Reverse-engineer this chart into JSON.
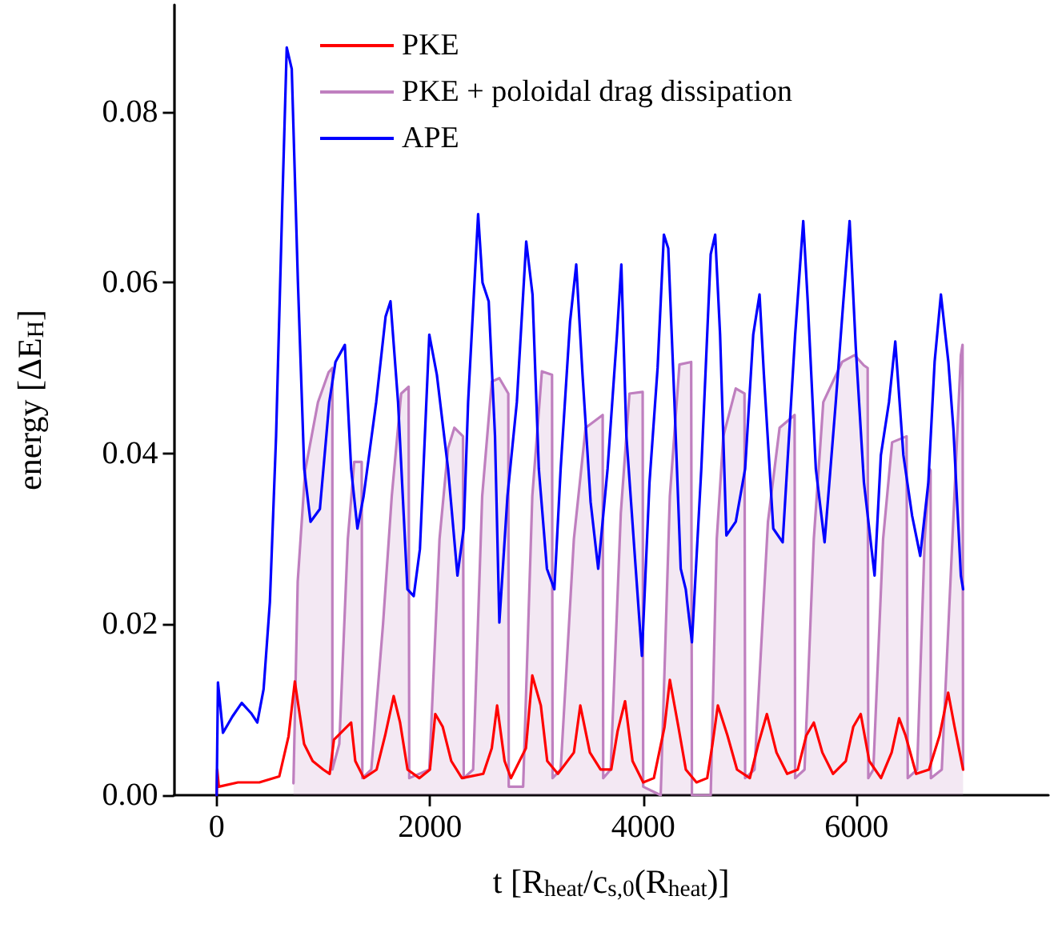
{
  "chart_data": {
    "type": "line",
    "xlabel": "t [R$_{heat}$/c$_{s,0}$(R$_{heat}$)]",
    "ylabel": "energy [ΔE$_{H}$]",
    "xlim": [
      -400,
      7800
    ],
    "xticks": [
      0,
      2000,
      4000,
      6000
    ],
    "ylim": [
      0,
      0.0925
    ],
    "yticks": [
      {
        "value": 0,
        "label": "0.00"
      },
      {
        "value": 0.02,
        "label": "0.02"
      },
      {
        "value": 0.04,
        "label": "0.04"
      },
      {
        "value": 0.06,
        "label": "0.06"
      },
      {
        "value": 0.08,
        "label": "0.08"
      }
    ],
    "grid": false,
    "legend": "top left",
    "marker": "none",
    "line_style": "solid",
    "series": [
      {
        "name": "PKE",
        "color": "#ff0000",
        "x": [
          0,
          5,
          20,
          200,
          400,
          587,
          674,
          733,
          760,
          820,
          900,
          1000,
          1060,
          1100,
          1261,
          1300,
          1380,
          1500,
          1580,
          1660,
          1720,
          1790,
          1900,
          2000,
          2050,
          2120,
          2200,
          2300,
          2500,
          2580,
          2630,
          2700,
          2760,
          2900,
          2960,
          3040,
          3100,
          3200,
          3350,
          3410,
          3500,
          3600,
          3700,
          3760,
          3830,
          3900,
          4000,
          4100,
          4200,
          4250,
          4330,
          4400,
          4500,
          4600,
          4650,
          4700,
          4790,
          4880,
          5000,
          5080,
          5160,
          5250,
          5350,
          5450,
          5530,
          5600,
          5680,
          5780,
          5900,
          5970,
          6040,
          6120,
          6230,
          6330,
          6400,
          6460,
          6560,
          6680,
          6780,
          6860,
          6920,
          7000
        ],
        "values": [
          0,
          0.003,
          0.001,
          0.0015,
          0.0015,
          0.0022,
          0.0069,
          0.0133,
          0.011,
          0.006,
          0.004,
          0.003,
          0.0025,
          0.0065,
          0.0085,
          0.004,
          0.002,
          0.003,
          0.007,
          0.0116,
          0.0085,
          0.003,
          0.002,
          0.003,
          0.0095,
          0.008,
          0.004,
          0.002,
          0.0025,
          0.0055,
          0.0105,
          0.004,
          0.002,
          0.0055,
          0.014,
          0.0105,
          0.004,
          0.0025,
          0.005,
          0.0105,
          0.005,
          0.003,
          0.003,
          0.0075,
          0.011,
          0.004,
          0.0015,
          0.002,
          0.008,
          0.0135,
          0.008,
          0.003,
          0.0015,
          0.002,
          0.006,
          0.0105,
          0.007,
          0.003,
          0.002,
          0.006,
          0.0095,
          0.005,
          0.0025,
          0.003,
          0.007,
          0.0085,
          0.005,
          0.0025,
          0.004,
          0.008,
          0.0095,
          0.004,
          0.002,
          0.005,
          0.009,
          0.007,
          0.0025,
          0.003,
          0.007,
          0.012,
          0.008,
          0.003
        ]
      },
      {
        "name": "PKE + poloidal drag dissipation",
        "type": "area",
        "color": "#bf7fbf",
        "x": [
          720,
          760,
          830,
          950,
          1050,
          1085,
          1085,
          1150,
          1230,
          1290,
          1360,
          1366,
          1450,
          1560,
          1642,
          1730,
          1800,
          1806,
          1994,
          2090,
          2170,
          2229,
          2310,
          2317,
          2405,
          2490,
          2580,
          2651,
          2735,
          2739,
          2874,
          2960,
          3050,
          3145,
          3150,
          3226,
          3350,
          3460,
          3620,
          3625,
          3695,
          3790,
          3871,
          3995,
          4000,
          4164,
          4250,
          4340,
          4450,
          4457,
          4633,
          4690,
          4751,
          4868,
          4950,
          4956,
          5044,
          5170,
          5279,
          5420,
          5425,
          5513,
          5600,
          5689,
          5865,
          5982,
          6070,
          6105,
          6111,
          6158,
          6250,
          6334,
          6470,
          6481,
          6569,
          6640,
          6686,
          6695,
          6698,
          6800,
          6900,
          6979,
          6995,
          7000
        ],
        "values": [
          0.0014,
          0.025,
          0.038,
          0.046,
          0.0495,
          0.05,
          0.003,
          0.006,
          0.03,
          0.039,
          0.039,
          0.002,
          0.003,
          0.02,
          0.035,
          0.047,
          0.0478,
          0.002,
          0.003,
          0.03,
          0.0406,
          0.043,
          0.042,
          0.002,
          0.003,
          0.035,
          0.0484,
          0.0488,
          0.047,
          0.001,
          0.001,
          0.035,
          0.0496,
          0.0492,
          0.002,
          0.003,
          0.03,
          0.043,
          0.0445,
          0.002,
          0.003,
          0.033,
          0.047,
          0.0472,
          0.001,
          0,
          0.035,
          0.0504,
          0.0507,
          0,
          0,
          0.03,
          0.042,
          0.0476,
          0.047,
          0.002,
          0.003,
          0.032,
          0.043,
          0.0445,
          0.002,
          0.003,
          0.03,
          0.046,
          0.0507,
          0.0515,
          0.0503,
          0.05,
          0.002,
          0.003,
          0.03,
          0.0413,
          0.042,
          0.002,
          0.003,
          0.03,
          0.0382,
          0.038,
          0.002,
          0.003,
          0.03,
          0.0515,
          0.0527,
          0.003
        ]
      },
      {
        "name": "APE",
        "color": "#0000ff",
        "x": [
          0,
          12,
          59,
          147,
          235,
          323,
          381,
          440,
          499,
          557,
          616,
          657,
          704,
          762,
          821,
          880,
          968,
          1056,
          1114,
          1202,
          1261,
          1320,
          1378,
          1496,
          1584,
          1630,
          1701,
          1789,
          1848,
          1906,
          1994,
          2065,
          2170,
          2258,
          2317,
          2358,
          2452,
          2493,
          2551,
          2610,
          2651,
          2727,
          2815,
          2903,
          2962,
          3021,
          3097,
          3167,
          3226,
          3314,
          3372,
          3431,
          3507,
          3578,
          3666,
          3754,
          3795,
          3842,
          3930,
          3988,
          4059,
          4135,
          4194,
          4235,
          4293,
          4352,
          4399,
          4457,
          4545,
          4633,
          4675,
          4721,
          4780,
          4868,
          4956,
          5032,
          5091,
          5132,
          5220,
          5308,
          5425,
          5501,
          5543,
          5619,
          5701,
          5806,
          5877,
          5936,
          5994,
          6070,
          6170,
          6229,
          6305,
          6364,
          6440,
          6522,
          6598,
          6674,
          6733,
          6792,
          6862,
          6909,
          6979,
          7000
        ],
        "values": [
          0,
          0.0132,
          0.0073,
          0.0092,
          0.0108,
          0.0096,
          0.0085,
          0.0124,
          0.0226,
          0.042,
          0.0695,
          0.0875,
          0.085,
          0.06,
          0.0382,
          0.032,
          0.0335,
          0.046,
          0.0507,
          0.0527,
          0.0382,
          0.0312,
          0.035,
          0.046,
          0.056,
          0.0578,
          0.046,
          0.0241,
          0.0233,
          0.0288,
          0.0539,
          0.0492,
          0.0382,
          0.0257,
          0.0312,
          0.046,
          0.068,
          0.06,
          0.0578,
          0.0421,
          0.0202,
          0.035,
          0.046,
          0.0648,
          0.0586,
          0.0382,
          0.0265,
          0.0241,
          0.0382,
          0.0554,
          0.0621,
          0.0492,
          0.0343,
          0.0265,
          0.0382,
          0.0539,
          0.0621,
          0.0421,
          0.0265,
          0.0163,
          0.0366,
          0.05,
          0.0656,
          0.064,
          0.046,
          0.0265,
          0.0241,
          0.0179,
          0.0382,
          0.0633,
          0.0656,
          0.0539,
          0.0304,
          0.032,
          0.0382,
          0.0539,
          0.0586,
          0.0492,
          0.0312,
          0.0296,
          0.0539,
          0.0672,
          0.0578,
          0.0382,
          0.0296,
          0.046,
          0.0578,
          0.0672,
          0.0523,
          0.0366,
          0.0257,
          0.0398,
          0.046,
          0.0531,
          0.0398,
          0.0327,
          0.028,
          0.0366,
          0.0507,
          0.0586,
          0.0507,
          0.0429,
          0.0257,
          0.0241
        ]
      }
    ]
  }
}
